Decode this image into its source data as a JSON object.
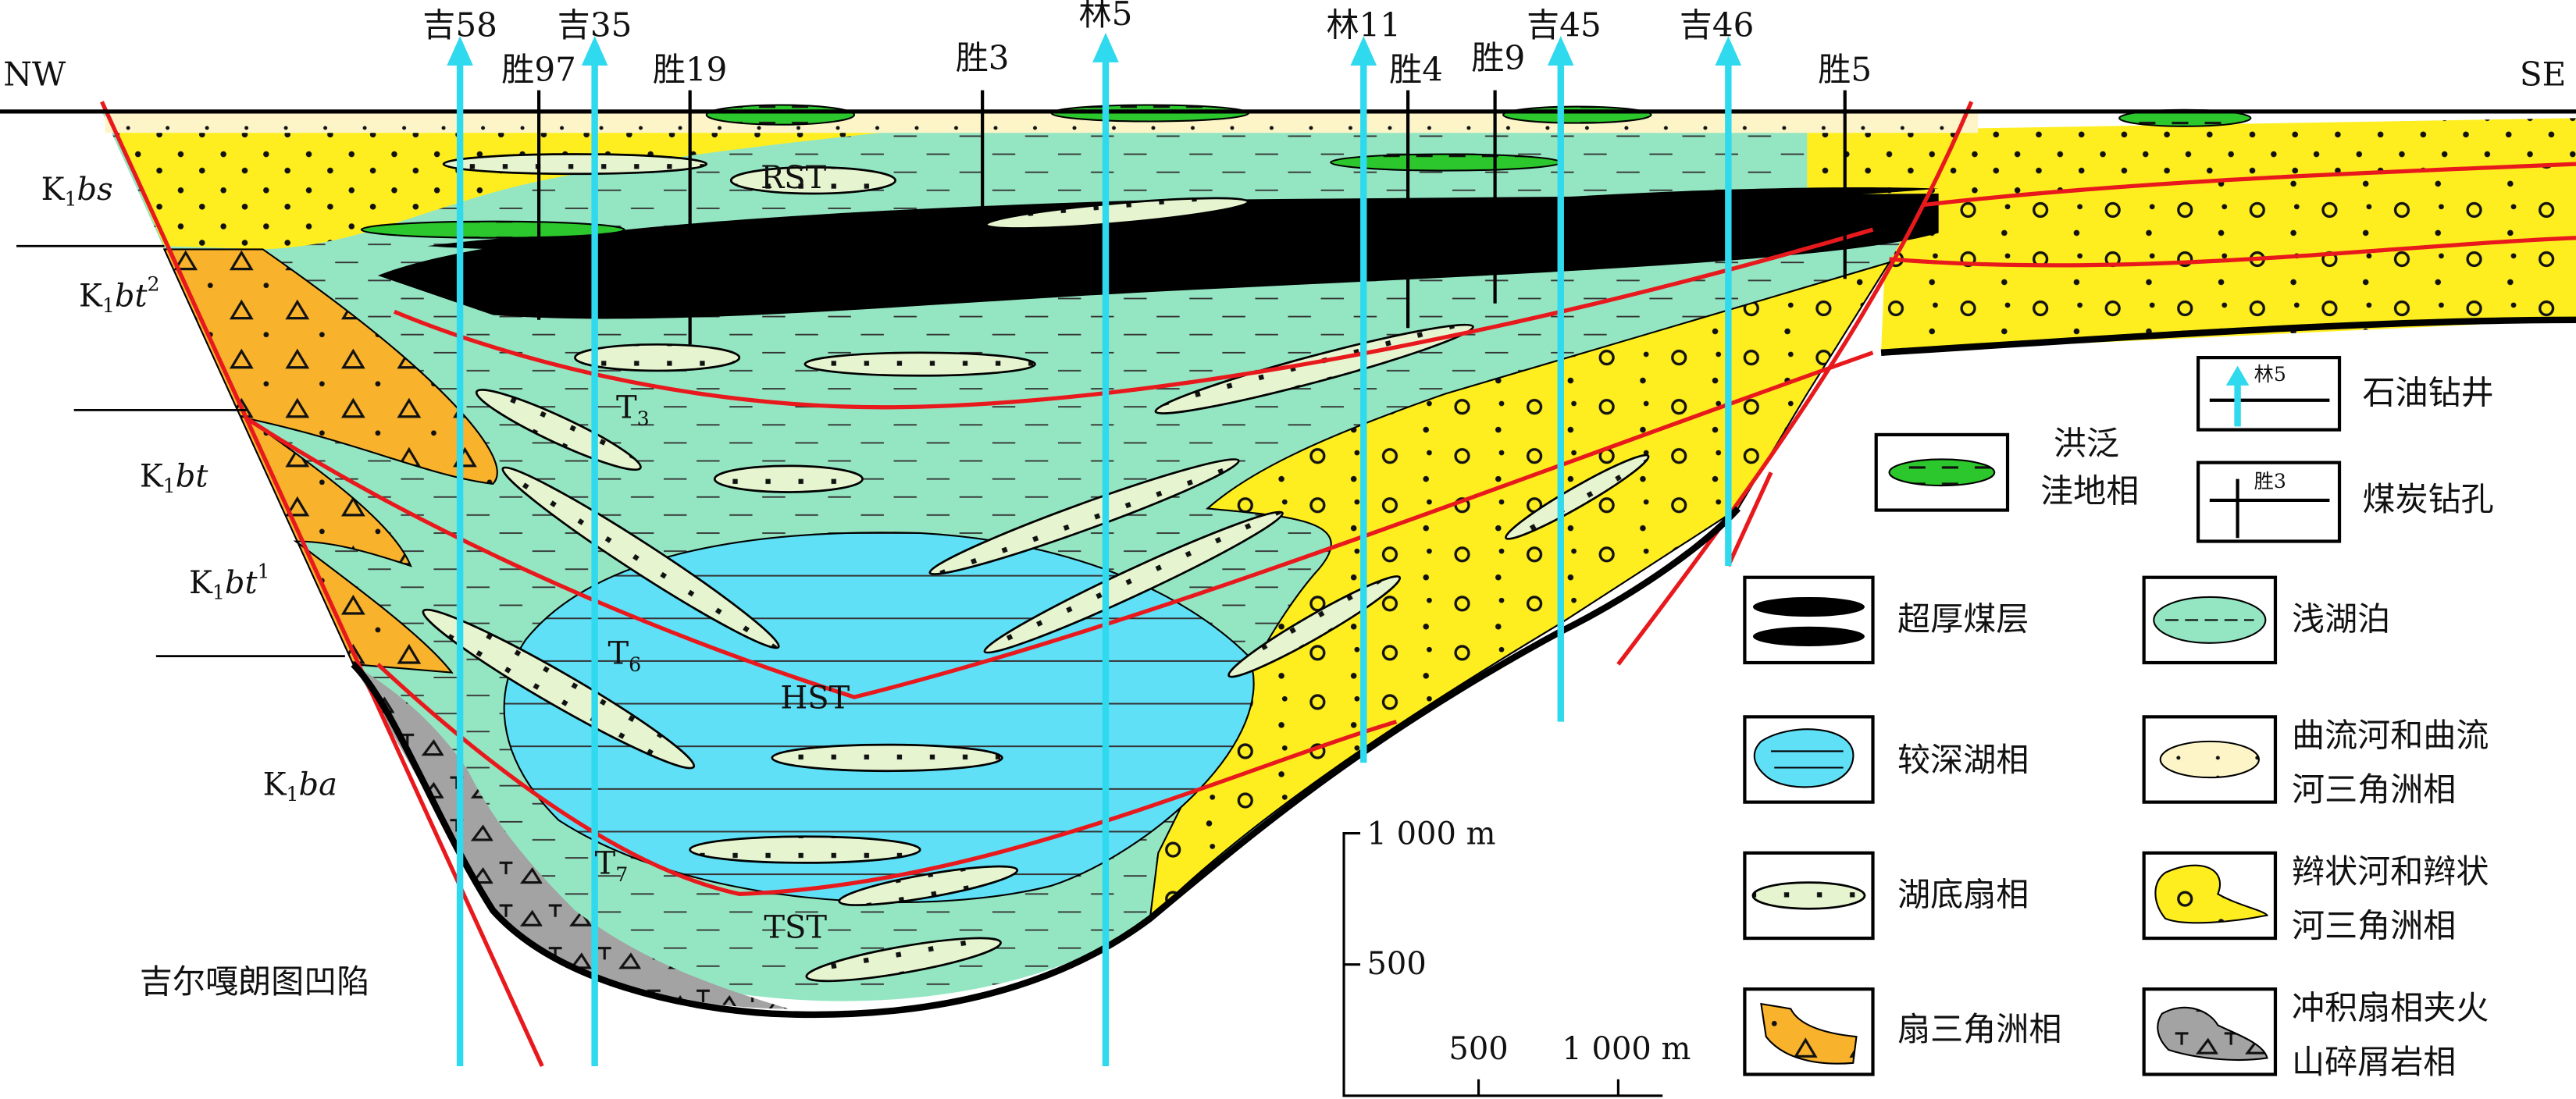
{
  "directions": {
    "left": "NW",
    "right": "SE"
  },
  "oil_wells": [
    {
      "label": "吉58"
    },
    {
      "label": "吉35"
    },
    {
      "label": "林5"
    },
    {
      "label": "林11"
    },
    {
      "label": "吉45"
    },
    {
      "label": "吉46"
    }
  ],
  "coal_boreholes": [
    {
      "label": "胜97"
    },
    {
      "label": "胜19"
    },
    {
      "label": "胜3"
    },
    {
      "label": "胜4"
    },
    {
      "label": "胜9"
    },
    {
      "label": "胜5"
    }
  ],
  "formations": [
    {
      "letter": "K",
      "subscript": "1",
      "name": "bs"
    },
    {
      "letter": "K",
      "subscript": "1",
      "name": "bt",
      "superscript": "2"
    },
    {
      "letter": "K",
      "subscript": "1",
      "name": "bt"
    },
    {
      "letter": "K",
      "subscript": "1",
      "name": "bt",
      "superscript": "1"
    },
    {
      "letter": "K",
      "subscript": "1",
      "name": "ba"
    }
  ],
  "system_tracts": [
    "RST",
    "HST",
    "TST"
  ],
  "surfaces": [
    {
      "letter": "T",
      "subscript": "3"
    },
    {
      "letter": "T",
      "subscript": "6"
    },
    {
      "letter": "T",
      "subscript": "7"
    }
  ],
  "basin_name": "吉尔嘎朗图凹陷",
  "scale": {
    "vertical": [
      "1 000 m",
      "500"
    ],
    "horizontal": [
      "500",
      "1 000 m"
    ]
  },
  "legend": [
    {
      "lines": [
        "石油钻井"
      ],
      "icon_text": "林5"
    },
    {
      "lines": [
        "洪泛",
        "洼地相"
      ]
    },
    {
      "lines": [
        "煤炭钻孔"
      ],
      "icon_text": "胜3"
    },
    {
      "lines": [
        "超厚煤层"
      ]
    },
    {
      "lines": [
        "浅湖泊"
      ]
    },
    {
      "lines": [
        "较深湖相"
      ]
    },
    {
      "lines": [
        "曲流河和曲流",
        "河三角洲相"
      ]
    },
    {
      "lines": [
        "湖底扇相"
      ]
    },
    {
      "lines": [
        "辫状河和辫状",
        "河三角洲相"
      ]
    },
    {
      "lines": [
        "扇三角洲相"
      ]
    },
    {
      "lines": [
        "冲积扇相夹火",
        "山碎屑岩相"
      ]
    }
  ]
}
